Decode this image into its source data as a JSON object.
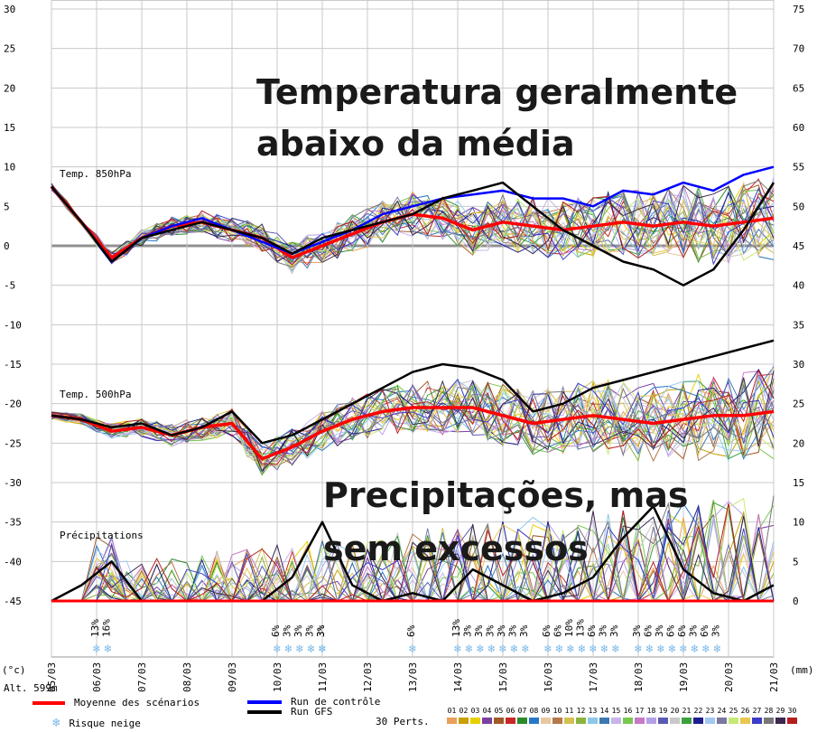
{
  "chart_data": {
    "type": "line",
    "title": "",
    "left_axis": {
      "unit": "(°c)",
      "ticks": [
        30,
        25,
        20,
        15,
        10,
        5,
        0,
        -5,
        -10,
        -15,
        -20,
        -25,
        -30,
        -35,
        -40,
        -45
      ],
      "range": [
        -45,
        30
      ]
    },
    "right_axis": {
      "unit": "(mm)",
      "ticks": [
        75,
        70,
        65,
        60,
        55,
        50,
        45,
        40,
        35,
        30,
        25,
        20,
        15,
        10,
        5,
        0
      ]
    },
    "x_labels": [
      "05/03",
      "06/03",
      "07/03",
      "08/03",
      "09/03",
      "10/03",
      "11/03",
      "12/03",
      "13/03",
      "14/03",
      "15/03",
      "16/03",
      "17/03",
      "18/03",
      "19/03",
      "20/03",
      "21/03"
    ],
    "grid": true,
    "panels": {
      "temp850": {
        "label": "Temp. 850hPa"
      },
      "temp500": {
        "label": "Temp. 500hPa"
      },
      "precip": {
        "label": "Précipitations"
      }
    },
    "series": [
      {
        "name": "Moyenne des scénarios",
        "panel": "temp850",
        "color": "#ff0000",
        "values": [
          7.5,
          3,
          -1.5,
          1,
          2.5,
          3,
          2,
          1,
          -1.5,
          0,
          1.5,
          3,
          4,
          3.5,
          2,
          3,
          2.5,
          2,
          2.5,
          3,
          2.5,
          3,
          2.5,
          3,
          3.5
        ]
      },
      {
        "name": "Moyenne des scénarios",
        "panel": "temp500",
        "color": "#ff0000",
        "values": [
          -21.5,
          -22,
          -23.5,
          -23,
          -24,
          -23,
          -22.5,
          -27,
          -25.5,
          -23.5,
          -22,
          -21,
          -20.5,
          -20.5,
          -20.5,
          -21.5,
          -22.5,
          -22,
          -21.5,
          -22,
          -22.5,
          -22,
          -21.5,
          -21.5,
          -21
        ]
      },
      {
        "name": "Run de contrôle",
        "panel": "temp850",
        "color": "#0000ff",
        "values": [
          7.5,
          3,
          -2,
          1,
          2.5,
          3.5,
          2,
          0.5,
          -1,
          0.5,
          2,
          4,
          5,
          6,
          6.5,
          7,
          6,
          6,
          5,
          7,
          6.5,
          8,
          7,
          9,
          10
        ]
      },
      {
        "name": "Run GFS",
        "panel": "temp850",
        "color": "#000000",
        "values": [
          7.5,
          3,
          -2,
          1,
          2,
          3,
          2,
          1,
          -1,
          1,
          2,
          3,
          4,
          6,
          7,
          8,
          5,
          2,
          0,
          -2,
          -3,
          -5,
          -3,
          2,
          8
        ]
      },
      {
        "name": "Run GFS",
        "panel": "temp500",
        "color": "#000000",
        "values": [
          -21.5,
          -22,
          -23,
          -22.5,
          -24,
          -23,
          -21,
          -25,
          -24,
          -22,
          -20,
          -18,
          -16,
          -15,
          -15.5,
          -17,
          -21,
          -20,
          -18,
          -17,
          -16,
          -15,
          -14,
          -13,
          -12
        ]
      },
      {
        "name": "Run GFS",
        "panel": "precip",
        "color": "#000000",
        "values": [
          0,
          2,
          5,
          0,
          0,
          0,
          0,
          0,
          3,
          10,
          2,
          0,
          1,
          0,
          4,
          2,
          0,
          1,
          3,
          8,
          12,
          4,
          1,
          0,
          2
        ]
      }
    ],
    "snow_risk": [
      {
        "date": "06/03",
        "values": [
          "13%",
          "16%"
        ]
      },
      {
        "date": "10/03",
        "values": [
          "6%",
          "3%",
          "3%",
          "3%",
          "3%"
        ]
      },
      {
        "date": "11/03",
        "values": [
          "3%"
        ]
      },
      {
        "date": "13/03",
        "values": [
          "6%"
        ]
      },
      {
        "date": "14/03",
        "values": [
          "13%",
          "3%",
          "3%",
          "3%",
          "3%",
          "3%",
          "3%"
        ]
      },
      {
        "date": "16/03",
        "values": [
          "6%",
          "6%",
          "10%",
          "13%",
          "6%",
          "3%",
          "3%"
        ]
      },
      {
        "date": "18/03",
        "values": [
          "3%",
          "6%",
          "3%",
          "6%",
          "6%",
          "3%",
          "6%",
          "3%"
        ]
      }
    ],
    "annotations": [
      "Temperatura geralmente",
      "abaixo da média",
      "Precipitações, mas",
      "sem excessos"
    ]
  },
  "footer": {
    "altitude": "Alt. 599m",
    "mean_label": "Moyenne des scénarios",
    "control_label": "Run de contrôle",
    "gfs_label": "Run GFS",
    "snow_label": "Risque neige",
    "perts_label": "30 Perts.",
    "pert_numbers": [
      "01",
      "02",
      "03",
      "04",
      "05",
      "06",
      "07",
      "08",
      "09",
      "10",
      "11",
      "12",
      "13",
      "14",
      "15",
      "16",
      "17",
      "18",
      "19",
      "20",
      "21",
      "22",
      "23",
      "24",
      "25",
      "26",
      "27",
      "28",
      "29",
      "30"
    ],
    "pert_colors": [
      "#e8a05a",
      "#c8a000",
      "#e8d000",
      "#7b3fa0",
      "#a05a28",
      "#c82828",
      "#2a8a2a",
      "#2878c8",
      "#e8c8a0",
      "#b4784a",
      "#d4c050",
      "#8ab43c",
      "#8cc8e8",
      "#3c78b4",
      "#c8b4e8",
      "#78c850",
      "#c878c8",
      "#b4a0e8",
      "#5a5ab4",
      "#c8c8c8",
      "#3ca03c",
      "#1e1e8c",
      "#a0c8f0",
      "#7878a0",
      "#c8e878",
      "#e8c850",
      "#3c3cc8",
      "#787878",
      "#3c2850",
      "#b41e1e"
    ],
    "mean_color": "#ff0000",
    "control_color": "#0000ff",
    "gfs_color": "#000000",
    "snow_color": "#7ab8e8"
  }
}
